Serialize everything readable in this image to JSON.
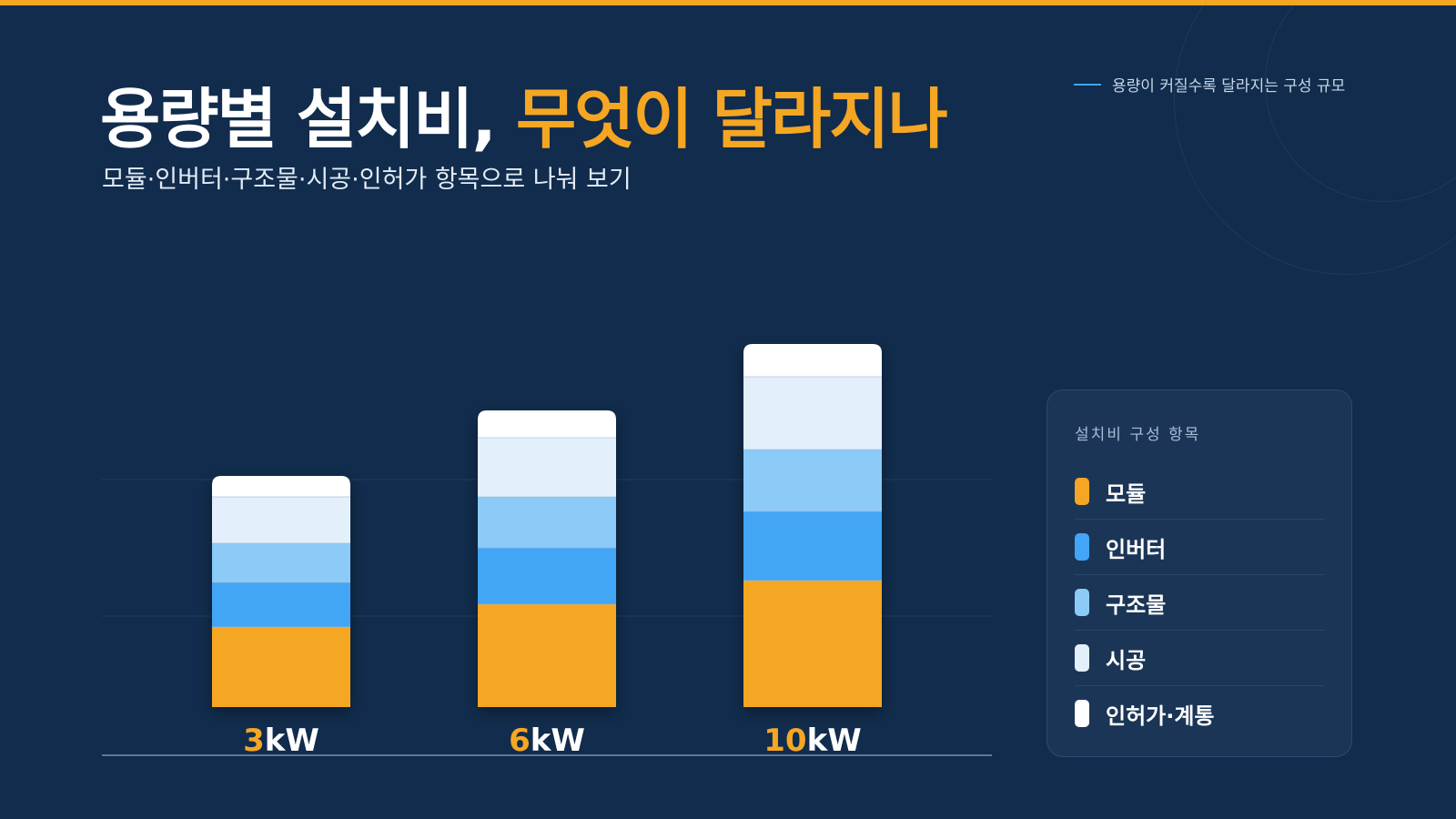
{
  "colors": {
    "background": "#112c4c",
    "accent": "#f5a623",
    "module": "#f5a623",
    "inverter": "#42a5f5",
    "structure": "#8ccaf7",
    "construction": "#e3f0fb",
    "permit": "#ffffff"
  },
  "header": {
    "title_main": "용량별 설치비, ",
    "title_accent": "무엇이 달라지나",
    "subtitle": "모듈·인버터·구조물·시공·인허가 항목으로 나눠 보기",
    "note": "용량이 커질수록 달라지는 구성 규모"
  },
  "legend": {
    "title": "설치비 구성 항목",
    "items": [
      {
        "label": "모듈",
        "color": "#f5a623"
      },
      {
        "label": "인버터",
        "color": "#42a5f5"
      },
      {
        "label": "구조물",
        "color": "#8ccaf7"
      },
      {
        "label": "시공",
        "color": "#e3f0fb"
      },
      {
        "label": "인허가·계통",
        "color": "#ffffff"
      }
    ]
  },
  "chart_data": {
    "type": "bar",
    "stacked": true,
    "categories": [
      {
        "number": "3",
        "unit": "kW"
      },
      {
        "number": "6",
        "unit": "kW"
      },
      {
        "number": "10",
        "unit": "kW"
      }
    ],
    "series": [
      {
        "name": "모듈",
        "color": "#f5a623",
        "values": [
          88,
          113,
          139
        ]
      },
      {
        "name": "인버터",
        "color": "#42a5f5",
        "values": [
          49,
          62,
          76
        ]
      },
      {
        "name": "구조물",
        "color": "#8ccaf7",
        "values": [
          43,
          56,
          68
        ]
      },
      {
        "name": "시공",
        "color": "#e3f0fb",
        "values": [
          51,
          65,
          80
        ]
      },
      {
        "name": "인허가·계통",
        "color": "#ffffff",
        "values": [
          23,
          30,
          36
        ]
      }
    ],
    "ylim": [
      0,
      400
    ],
    "grid": true
  }
}
